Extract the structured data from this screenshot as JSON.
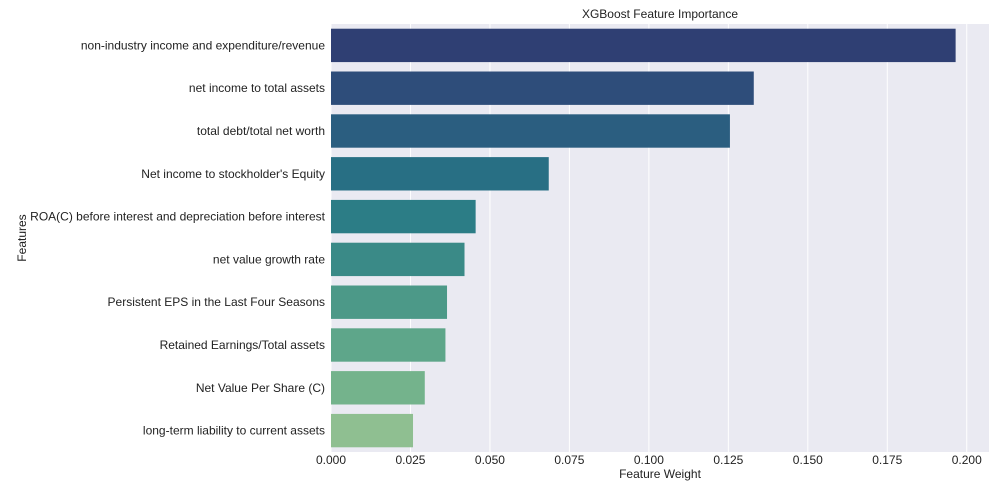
{
  "chart_data": {
    "type": "bar",
    "orientation": "horizontal",
    "title": "XGBoost Feature Importance",
    "xlabel": "Feature Weight",
    "ylabel": "Features",
    "xlim": [
      0.0,
      0.207
    ],
    "xticks": [
      0.0,
      0.025,
      0.05,
      0.075,
      0.1,
      0.125,
      0.15,
      0.175,
      0.2
    ],
    "xtick_labels": [
      "0.000",
      "0.025",
      "0.050",
      "0.075",
      "0.100",
      "0.125",
      "0.150",
      "0.175",
      "0.200"
    ],
    "grid": true,
    "background_color": "#eaeaf2",
    "categories": [
      "non-industry income and expenditure/revenue",
      "net income to total assets",
      "total debt/total net worth",
      "Net income to stockholder's Equity",
      "ROA(C) before interest and depreciation before interest",
      "net value growth rate",
      "Persistent EPS in the Last Four Seasons",
      "Retained Earnings/Total assets",
      "Net Value Per Share (C)",
      "long-term liability to current assets"
    ],
    "values": [
      0.1965,
      0.133,
      0.1255,
      0.0685,
      0.0455,
      0.042,
      0.0365,
      0.036,
      0.0295,
      0.0258
    ],
    "colors": [
      "#2f3f73",
      "#2e4d7a",
      "#2b5e80",
      "#286f84",
      "#2c7d86",
      "#3a8a87",
      "#4c9988",
      "#5ea68a",
      "#74b38c",
      "#8fbf91"
    ]
  }
}
